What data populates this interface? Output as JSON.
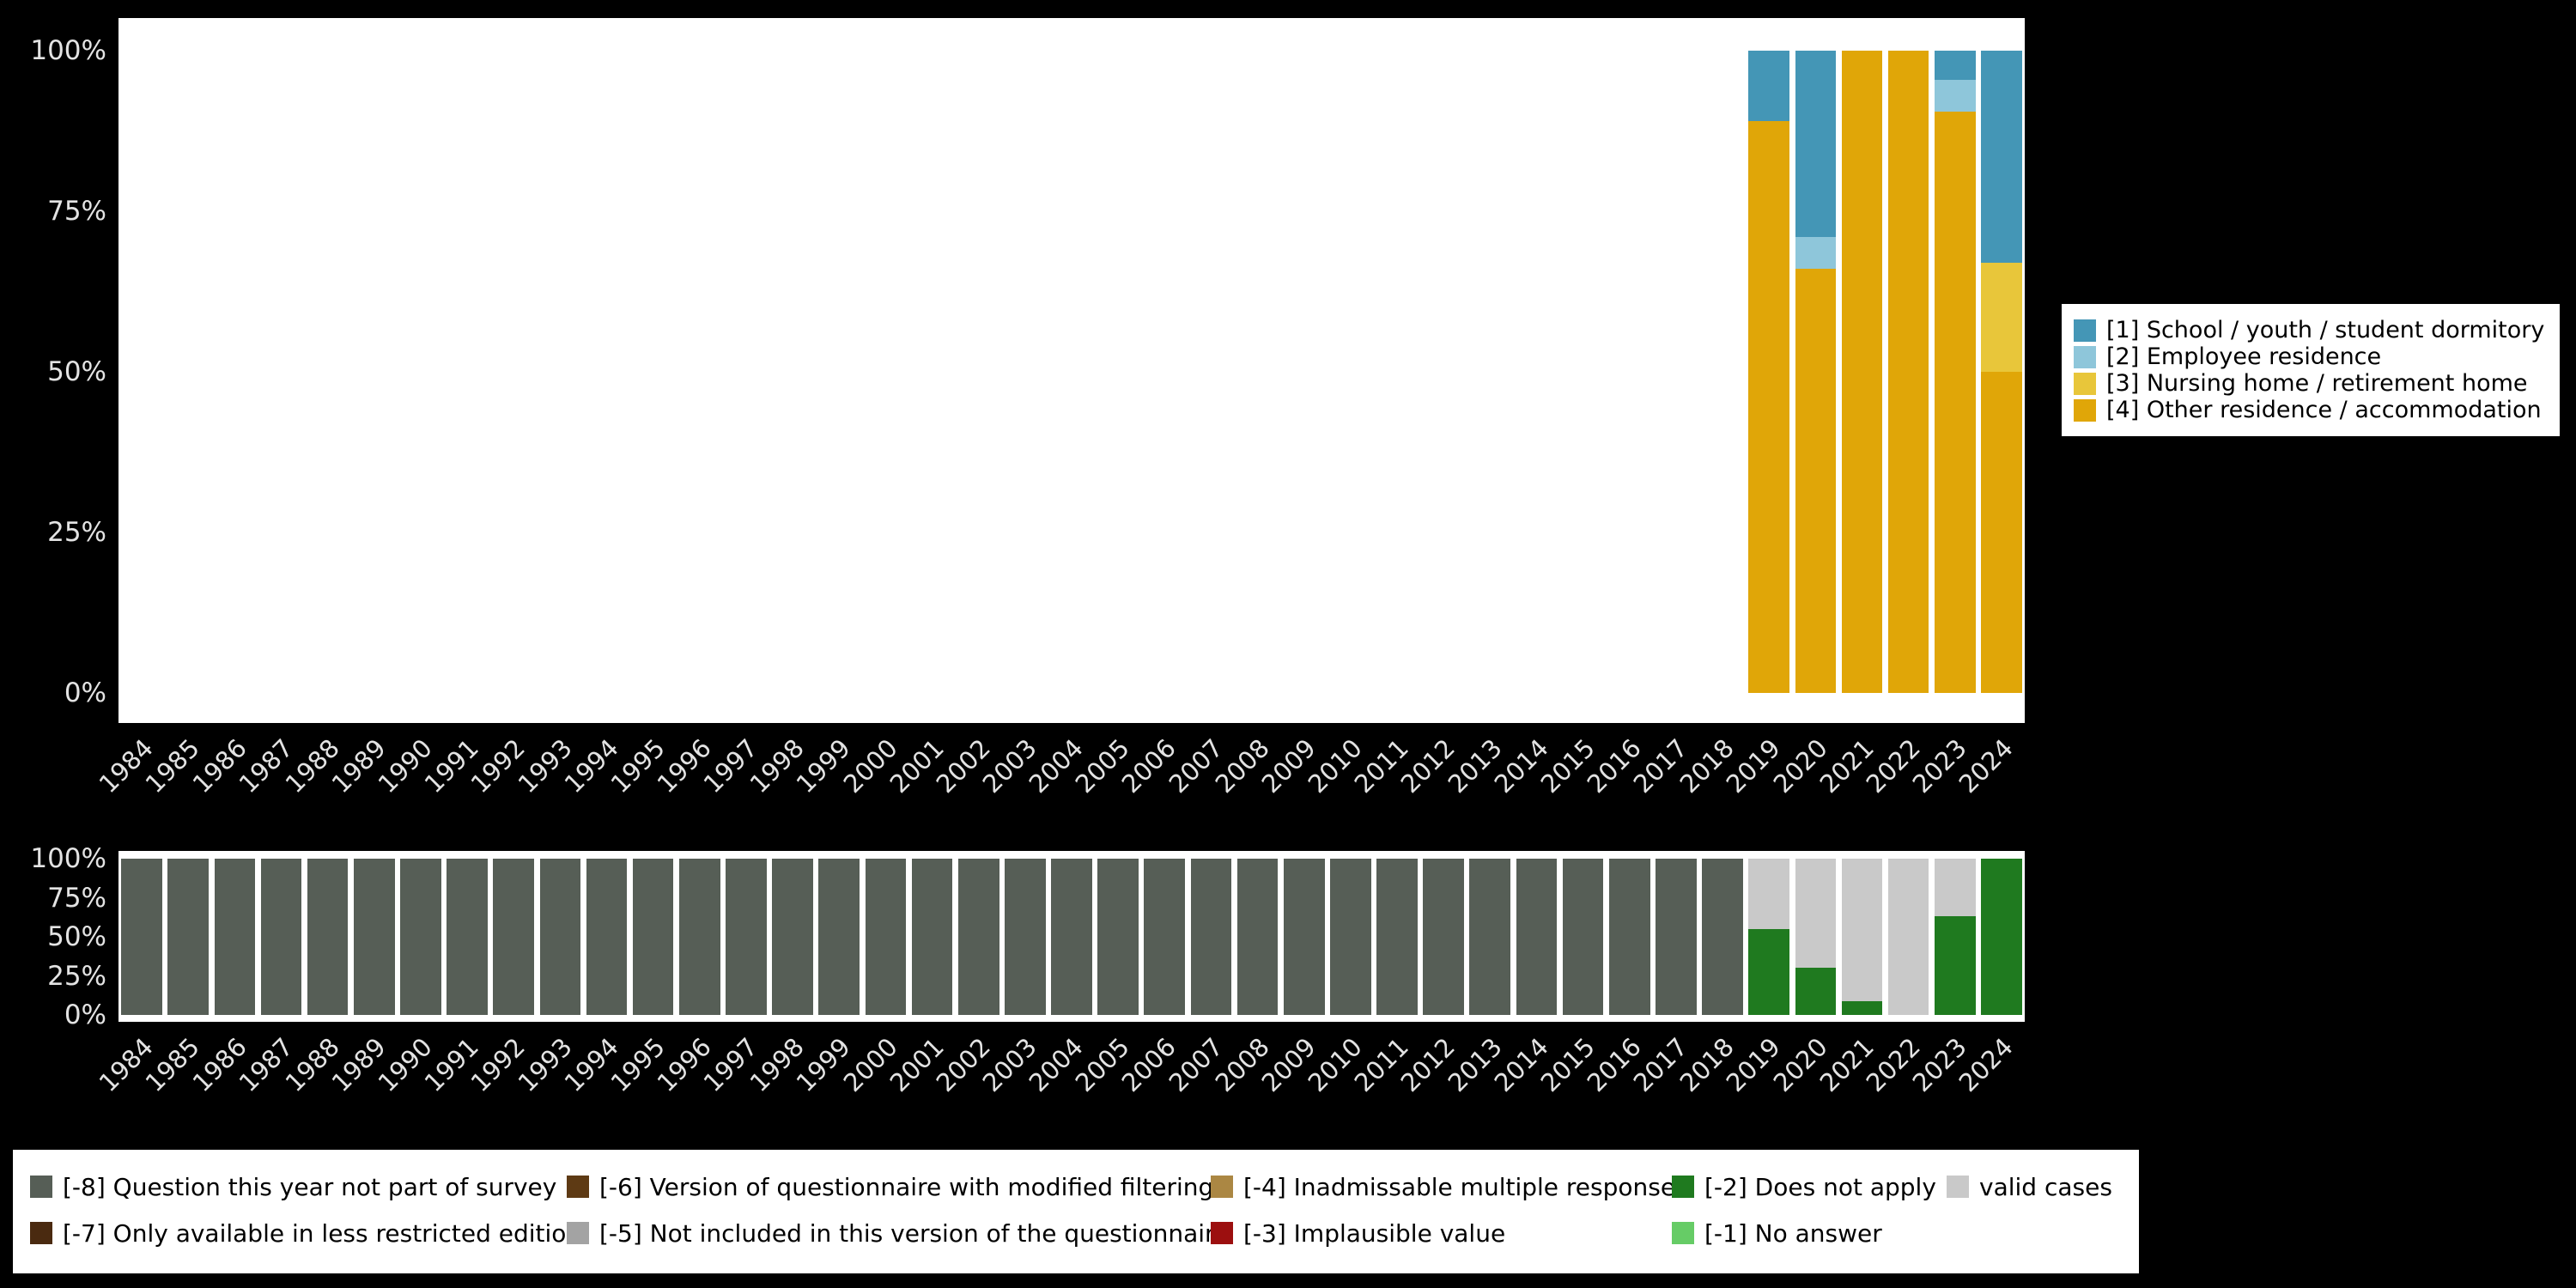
{
  "colors": {
    "background": "#000000",
    "panel": "#ffffff",
    "axis_text": "#e3e3e3",
    "legend_background": "#ffffff",
    "legend_text": "#000000"
  },
  "chart_data": [
    {
      "id": "category-distribution",
      "type": "bar",
      "stacked": true,
      "title": "",
      "xlabel": "",
      "ylabel": "",
      "ylim": [
        0,
        100
      ],
      "yticks": [
        "0%",
        "25%",
        "50%",
        "75%",
        "100%"
      ],
      "grid": false,
      "legend_position": "right",
      "categories": [
        "1984",
        "1985",
        "1986",
        "1987",
        "1988",
        "1989",
        "1990",
        "1991",
        "1992",
        "1993",
        "1994",
        "1995",
        "1996",
        "1997",
        "1998",
        "1999",
        "2000",
        "2001",
        "2002",
        "2003",
        "2004",
        "2005",
        "2006",
        "2007",
        "2008",
        "2009",
        "2010",
        "2011",
        "2012",
        "2013",
        "2014",
        "2015",
        "2016",
        "2017",
        "2018",
        "2019",
        "2020",
        "2021",
        "2022",
        "2023",
        "2024"
      ],
      "stack_order_bottom_to_top": [
        3,
        2,
        1,
        0
      ],
      "series": [
        {
          "name": "[1] School / youth / student dormitory",
          "color": "#4496b6",
          "values_by_year": {
            "2019": 11,
            "2020": 29,
            "2023": 4.5,
            "2024": 33
          }
        },
        {
          "name": "[2] Employee residence",
          "color": "#8ec6da",
          "values_by_year": {
            "2020": 5,
            "2023": 5
          }
        },
        {
          "name": "[3] Nursing home / retirement home",
          "color": "#e8c63a",
          "values_by_year": {
            "2024": 17
          }
        },
        {
          "name": "[4] Other residence / accommodation",
          "color": "#e0a608",
          "values_by_year": {
            "2019": 89,
            "2020": 66,
            "2021": 100,
            "2022": 100,
            "2023": 90.5,
            "2024": 50
          }
        }
      ]
    },
    {
      "id": "missing-values-distribution",
      "type": "bar",
      "stacked": true,
      "title": "",
      "xlabel": "",
      "ylabel": "",
      "ylim": [
        0,
        100
      ],
      "yticks": [
        "0%",
        "25%",
        "50%",
        "75%",
        "100%"
      ],
      "grid": false,
      "legend_position": "bottom",
      "categories": [
        "1984",
        "1985",
        "1986",
        "1987",
        "1988",
        "1989",
        "1990",
        "1991",
        "1992",
        "1993",
        "1994",
        "1995",
        "1996",
        "1997",
        "1998",
        "1999",
        "2000",
        "2001",
        "2002",
        "2003",
        "2004",
        "2005",
        "2006",
        "2007",
        "2008",
        "2009",
        "2010",
        "2011",
        "2012",
        "2013",
        "2014",
        "2015",
        "2016",
        "2017",
        "2018",
        "2019",
        "2020",
        "2021",
        "2022",
        "2023",
        "2024"
      ],
      "stack_order_bottom_to_top": [
        0,
        1,
        2
      ],
      "series": [
        {
          "name": "[-8] Question this year not part of survey",
          "color": "#565e56",
          "values_by_year": {
            "1984-2018": 100
          }
        },
        {
          "name": "[-2] Does not apply",
          "color": "#1f7a1f",
          "values_by_year": {
            "2019": 55,
            "2020": 30,
            "2021": 9,
            "2023": 63,
            "2024": 100
          }
        },
        {
          "name": "valid cases",
          "color": "#c9c9c9",
          "values_by_year": {
            "2019": 45,
            "2020": 70,
            "2021": 91,
            "2022": 100,
            "2023": 37
          }
        }
      ]
    }
  ],
  "legend_missing": {
    "columns": [
      [
        {
          "label": "[-8] Question this year not part of survey",
          "color": "#565e56"
        },
        {
          "label": "[-7] Only available in less restricted edition",
          "color": "#4a2a10"
        }
      ],
      [
        {
          "label": "[-6] Version of questionnaire with modified filtering",
          "color": "#5e3a14"
        },
        {
          "label": "[-5] Not included in this version of the questionnaire",
          "color": "#a3a3a3"
        }
      ],
      [
        {
          "label": "[-4] Inadmissable multiple response",
          "color": "#ab8743"
        },
        {
          "label": "[-3] Implausible value",
          "color": "#9c0f0f"
        }
      ],
      [
        {
          "label": "[-2] Does not apply",
          "color": "#1f7a1f"
        },
        {
          "label": "[-1] No answer",
          "color": "#66cc66"
        }
      ],
      [
        {
          "label": "valid cases",
          "color": "#c9c9c9"
        }
      ]
    ]
  }
}
